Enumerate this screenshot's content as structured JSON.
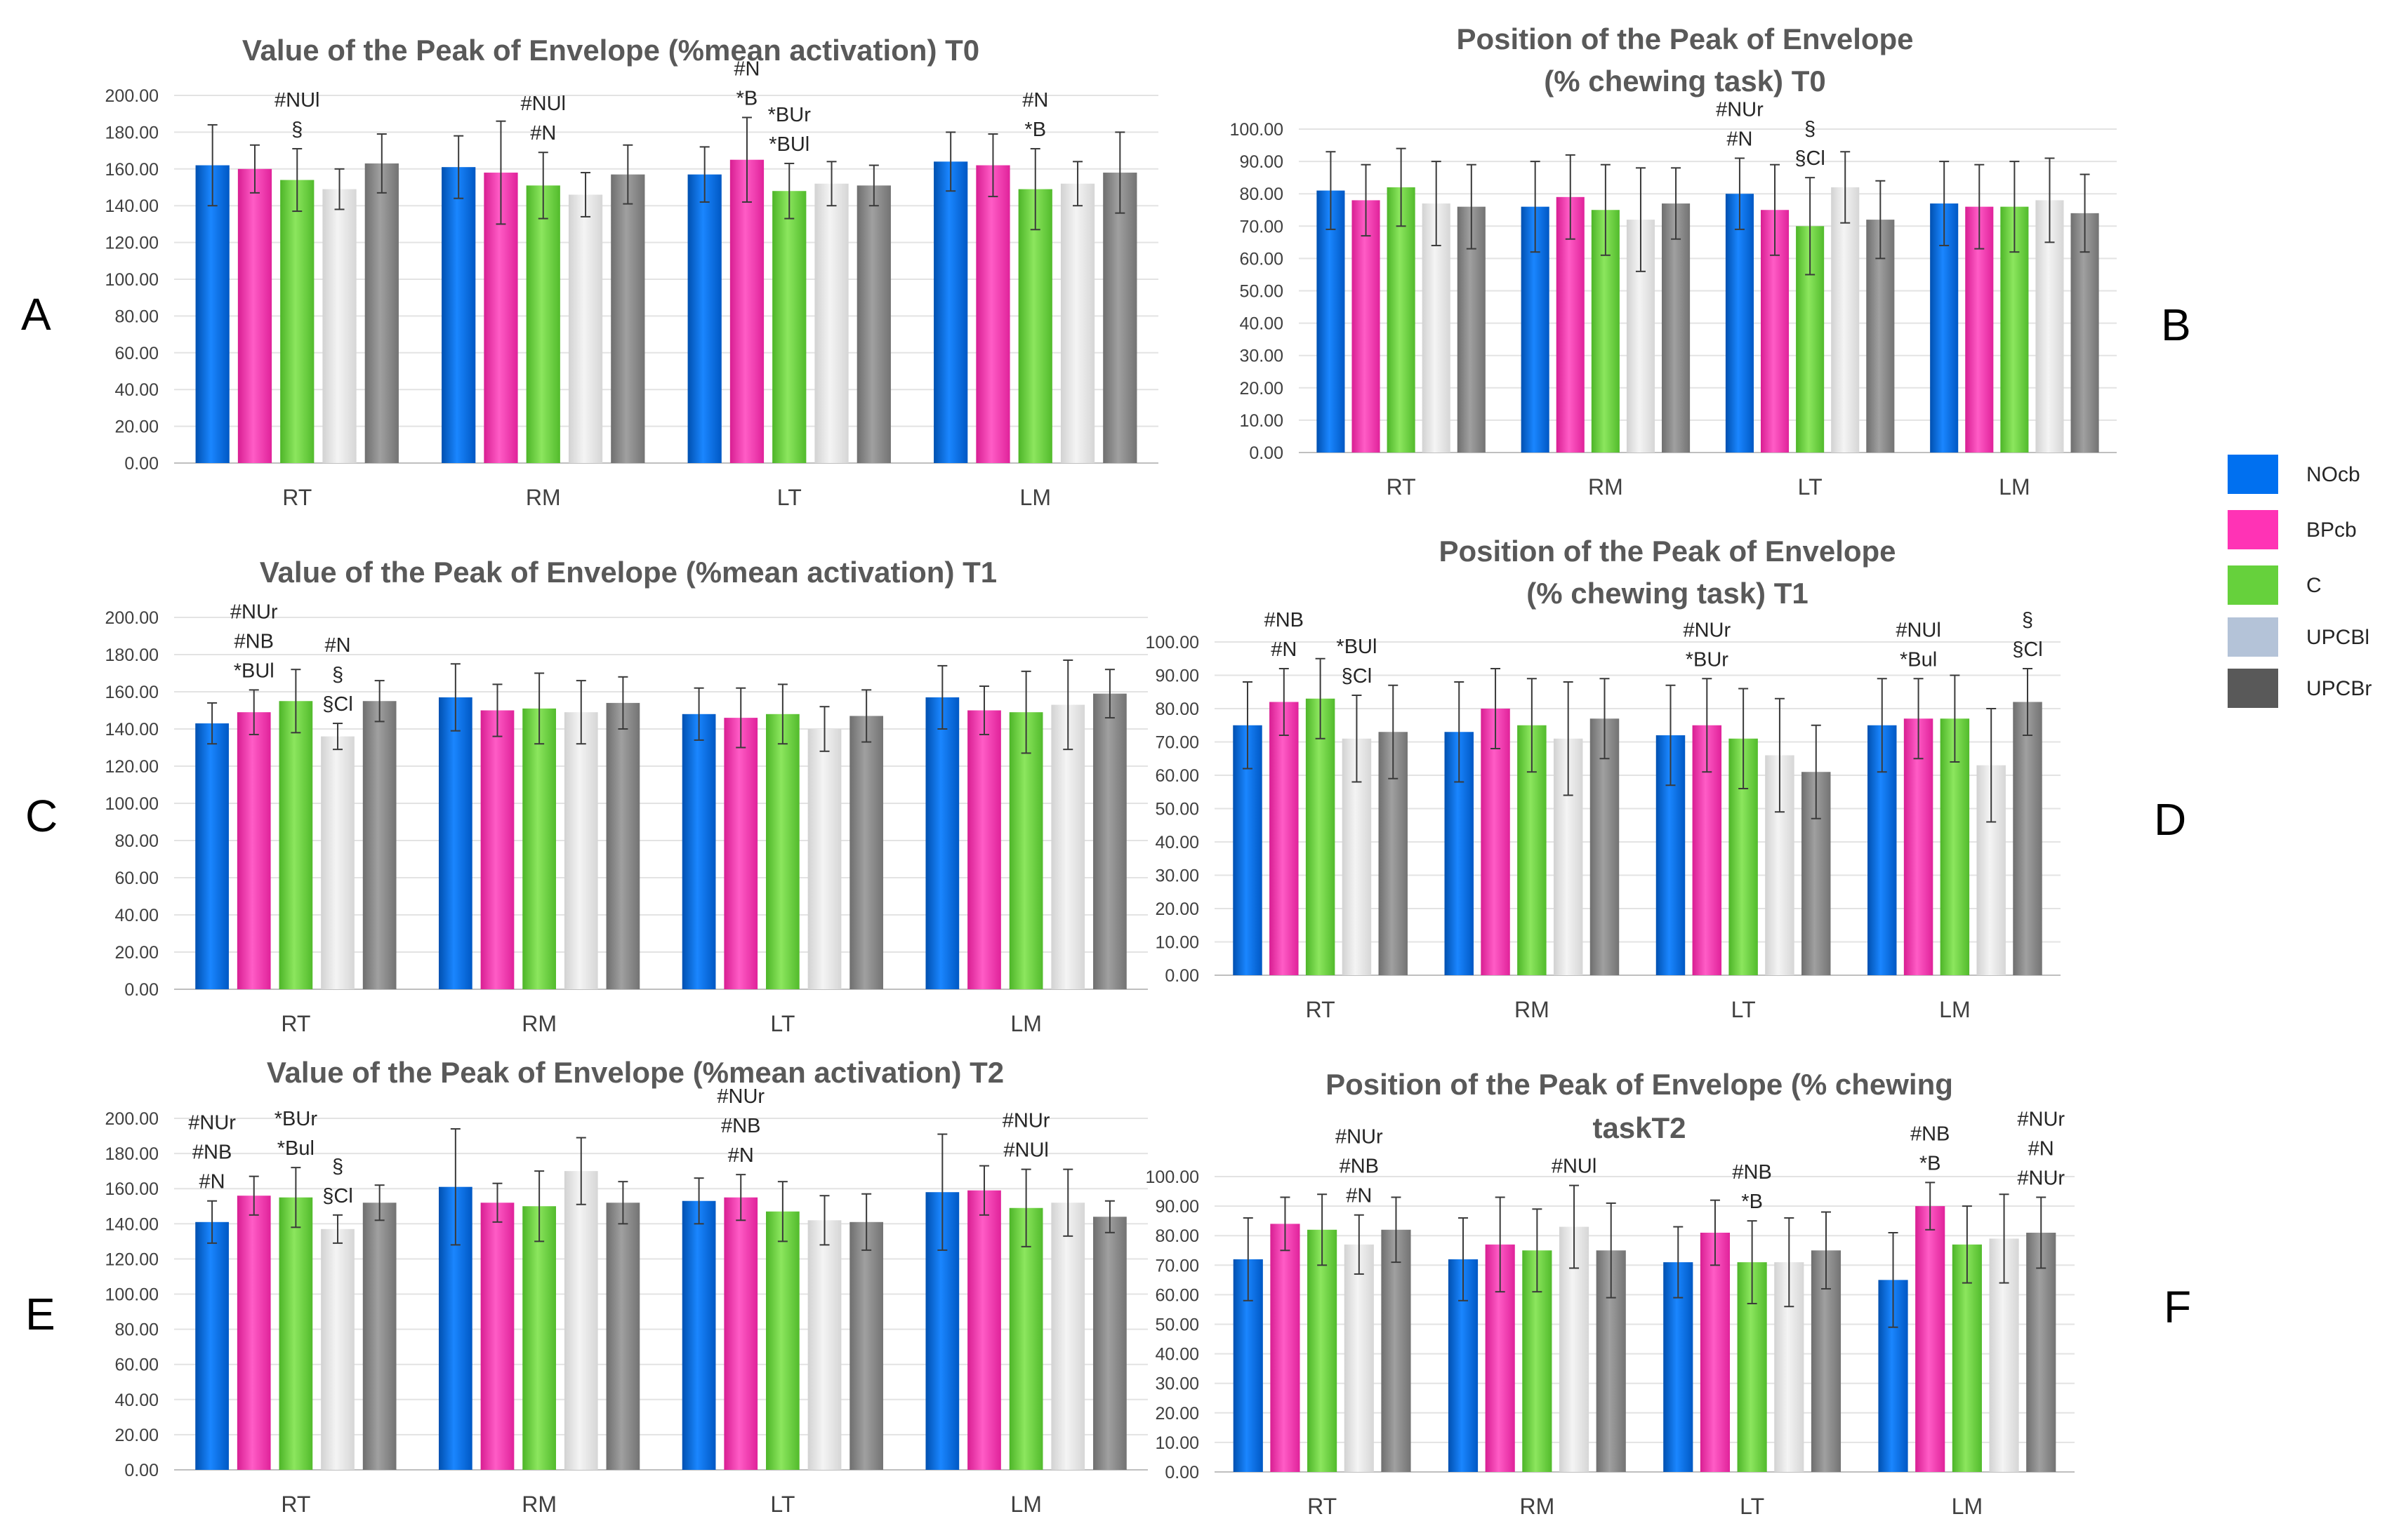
{
  "legend": {
    "items": [
      {
        "name": "NOcb",
        "color": "#0070F0"
      },
      {
        "name": "BPcb",
        "color": "#FF33B5"
      },
      {
        "name": "C",
        "color": "#66D13C"
      },
      {
        "name": "UPCBl",
        "color": "#B4C3D8"
      },
      {
        "name": "UPCBr",
        "color": "#595959"
      }
    ]
  },
  "chart_data": [
    {
      "panel": "A",
      "type": "bar",
      "title": [
        "Value of the Peak of Envelope (%mean activation) T0"
      ],
      "categories": [
        "RT",
        "RM",
        "LT",
        "LM"
      ],
      "ylim": [
        0,
        200
      ],
      "ytick_step": 20,
      "series": [
        {
          "name": "NOcb",
          "values": [
            162,
            161,
            157,
            164
          ],
          "errors": [
            22,
            17,
            15,
            16
          ]
        },
        {
          "name": "BPcb",
          "values": [
            160,
            158,
            165,
            162
          ],
          "errors": [
            13,
            28,
            23,
            17
          ]
        },
        {
          "name": "C",
          "values": [
            154,
            151,
            148,
            149
          ],
          "errors": [
            17,
            18,
            15,
            22
          ]
        },
        {
          "name": "UPCBl",
          "values": [
            149,
            146,
            152,
            152
          ],
          "errors": [
            11,
            12,
            12,
            12
          ]
        },
        {
          "name": "UPCBr",
          "values": [
            163,
            157,
            151,
            158
          ],
          "errors": [
            16,
            16,
            11,
            22
          ]
        }
      ],
      "annotations": [
        {
          "category": 0,
          "series": 2,
          "lines": [
            "#NUl",
            "§"
          ]
        },
        {
          "category": 1,
          "series": 2,
          "lines": [
            "#NUl",
            "#N"
          ]
        },
        {
          "category": 2,
          "series": 1,
          "lines": [
            "#N",
            "*B"
          ]
        },
        {
          "category": 2,
          "series": 2,
          "lines": [
            "*BUr",
            "*BUl"
          ]
        },
        {
          "category": 3,
          "series": 2,
          "lines": [
            "#N",
            "*B"
          ]
        }
      ]
    },
    {
      "panel": "B",
      "type": "bar",
      "title": [
        "Position of the Peak of Envelope",
        "(% chewing task) T0"
      ],
      "categories": [
        "RT",
        "RM",
        "LT",
        "LM"
      ],
      "ylim": [
        0,
        100
      ],
      "ytick_step": 10,
      "series": [
        {
          "name": "NOcb",
          "values": [
            81,
            76,
            80,
            77
          ],
          "errors": [
            12,
            14,
            11,
            13
          ]
        },
        {
          "name": "BPcb",
          "values": [
            78,
            79,
            75,
            76
          ],
          "errors": [
            11,
            13,
            14,
            13
          ]
        },
        {
          "name": "C",
          "values": [
            82,
            75,
            70,
            76
          ],
          "errors": [
            12,
            14,
            15,
            14
          ]
        },
        {
          "name": "UPCBl",
          "values": [
            77,
            72,
            82,
            78
          ],
          "errors": [
            13,
            16,
            11,
            13
          ]
        },
        {
          "name": "UPCBr",
          "values": [
            76,
            77,
            72,
            74
          ],
          "errors": [
            13,
            11,
            12,
            12
          ]
        }
      ],
      "annotations": [
        {
          "category": 2,
          "series": 0,
          "lines": [
            "#NUr",
            "#N"
          ]
        },
        {
          "category": 2,
          "series": 2,
          "lines": [
            "§",
            "§Cl"
          ]
        }
      ]
    },
    {
      "panel": "C",
      "type": "bar",
      "title": [
        "Value of the Peak of Envelope (%mean activation) T1"
      ],
      "categories": [
        "RT",
        "RM",
        "LT",
        "LM"
      ],
      "ylim": [
        0,
        200
      ],
      "ytick_step": 20,
      "series": [
        {
          "name": "NOcb",
          "values": [
            143,
            157,
            148,
            157
          ],
          "errors": [
            11,
            18,
            14,
            17
          ]
        },
        {
          "name": "BPcb",
          "values": [
            149,
            150,
            146,
            150
          ],
          "errors": [
            12,
            14,
            16,
            13
          ]
        },
        {
          "name": "C",
          "values": [
            155,
            151,
            148,
            149
          ],
          "errors": [
            17,
            19,
            16,
            22
          ]
        },
        {
          "name": "UPCBl",
          "values": [
            136,
            149,
            140,
            153
          ],
          "errors": [
            7,
            17,
            12,
            24
          ]
        },
        {
          "name": "UPCBr",
          "values": [
            155,
            154,
            147,
            159
          ],
          "errors": [
            11,
            14,
            14,
            13
          ]
        }
      ],
      "annotations": [
        {
          "category": 0,
          "series": 1,
          "lines": [
            "#NUr",
            "#NB",
            "*BUl"
          ]
        },
        {
          "category": 0,
          "series": 3,
          "lines": [
            "#N",
            "§",
            "§Cl"
          ]
        }
      ]
    },
    {
      "panel": "D",
      "type": "bar",
      "title": [
        "Position of the Peak of Envelope",
        "(% chewing task) T1"
      ],
      "categories": [
        "RT",
        "RM",
        "LT",
        "LM"
      ],
      "ylim": [
        0,
        100
      ],
      "ytick_step": 10,
      "series": [
        {
          "name": "NOcb",
          "values": [
            75,
            73,
            72,
            75
          ],
          "errors": [
            13,
            15,
            15,
            14
          ]
        },
        {
          "name": "BPcb",
          "values": [
            82,
            80,
            75,
            77
          ],
          "errors": [
            10,
            12,
            14,
            12
          ]
        },
        {
          "name": "C",
          "values": [
            83,
            75,
            71,
            77
          ],
          "errors": [
            12,
            14,
            15,
            13
          ]
        },
        {
          "name": "UPCBl",
          "values": [
            71,
            71,
            66,
            63
          ],
          "errors": [
            13,
            17,
            17,
            17
          ]
        },
        {
          "name": "UPCBr",
          "values": [
            73,
            77,
            61,
            82
          ],
          "errors": [
            14,
            12,
            14,
            10
          ]
        }
      ],
      "annotations": [
        {
          "category": 0,
          "series": 1,
          "lines": [
            "#NB",
            "#N"
          ]
        },
        {
          "category": 0,
          "series": 3,
          "lines": [
            "*BUl",
            "§Cl"
          ]
        },
        {
          "category": 2,
          "series": 1,
          "lines": [
            "#NUr",
            "*BUr"
          ]
        },
        {
          "category": 3,
          "series": 1,
          "lines": [
            "#NUl",
            "*Bul"
          ]
        },
        {
          "category": 3,
          "series": 4,
          "lines": [
            "§",
            "§Cl"
          ]
        }
      ]
    },
    {
      "panel": "E",
      "type": "bar",
      "title": [
        "Value of the Peak of Envelope (%mean activation) T2"
      ],
      "categories": [
        "RT",
        "RM",
        "LT",
        "LM"
      ],
      "ylim": [
        0,
        200
      ],
      "ytick_step": 20,
      "series": [
        {
          "name": "NOcb",
          "values": [
            141,
            161,
            153,
            158
          ],
          "errors": [
            12,
            33,
            13,
            33
          ]
        },
        {
          "name": "BPcb",
          "values": [
            156,
            152,
            155,
            159
          ],
          "errors": [
            11,
            11,
            13,
            14
          ]
        },
        {
          "name": "C",
          "values": [
            155,
            150,
            147,
            149
          ],
          "errors": [
            17,
            20,
            17,
            22
          ]
        },
        {
          "name": "UPCBl",
          "values": [
            137,
            170,
            142,
            152
          ],
          "errors": [
            8,
            19,
            14,
            19
          ]
        },
        {
          "name": "UPCBr",
          "values": [
            152,
            152,
            141,
            144
          ],
          "errors": [
            10,
            12,
            16,
            9
          ]
        }
      ],
      "annotations": [
        {
          "category": 0,
          "series": 0,
          "lines": [
            "#NUr",
            "#NB",
            "#N"
          ]
        },
        {
          "category": 0,
          "series": 2,
          "lines": [
            "*BUr",
            "*Bul"
          ]
        },
        {
          "category": 0,
          "series": 3,
          "lines": [
            "§",
            "§Cl"
          ]
        },
        {
          "category": 2,
          "series": 1,
          "lines": [
            "#NUr",
            "#NB",
            "#N"
          ]
        },
        {
          "category": 3,
          "series": 2,
          "lines": [
            "#NUr",
            "#NUl"
          ]
        }
      ]
    },
    {
      "panel": "F",
      "type": "bar",
      "title": [
        "Position of the Peak of Envelope (% chewing",
        "taskT2"
      ],
      "categories": [
        "RT",
        "RM",
        "LT",
        "LM"
      ],
      "ylim": [
        0,
        100
      ],
      "ytick_step": 10,
      "series": [
        {
          "name": "NOcb",
          "values": [
            72,
            72,
            71,
            65
          ],
          "errors": [
            14,
            14,
            12,
            16
          ]
        },
        {
          "name": "BPcb",
          "values": [
            84,
            77,
            81,
            90
          ],
          "errors": [
            9,
            16,
            11,
            8
          ]
        },
        {
          "name": "C",
          "values": [
            82,
            75,
            71,
            77
          ],
          "errors": [
            12,
            14,
            14,
            13
          ]
        },
        {
          "name": "UPCBl",
          "values": [
            77,
            83,
            71,
            79
          ],
          "errors": [
            10,
            14,
            15,
            15
          ]
        },
        {
          "name": "UPCBr",
          "values": [
            82,
            75,
            75,
            81
          ],
          "errors": [
            11,
            16,
            13,
            12
          ]
        }
      ],
      "annotations": [
        {
          "category": 0,
          "series": 3,
          "lines": [
            "#NUr",
            "#NB",
            "#N"
          ]
        },
        {
          "category": 1,
          "series": 3,
          "lines": [
            "#NUl"
          ]
        },
        {
          "category": 2,
          "series": 2,
          "lines": [
            "#NB",
            "*B"
          ]
        },
        {
          "category": 3,
          "series": 1,
          "lines": [
            "#NB",
            "*B"
          ]
        },
        {
          "category": 3,
          "series": 4,
          "lines": [
            "#NUr",
            "#N",
            "#NUr"
          ]
        }
      ]
    }
  ]
}
